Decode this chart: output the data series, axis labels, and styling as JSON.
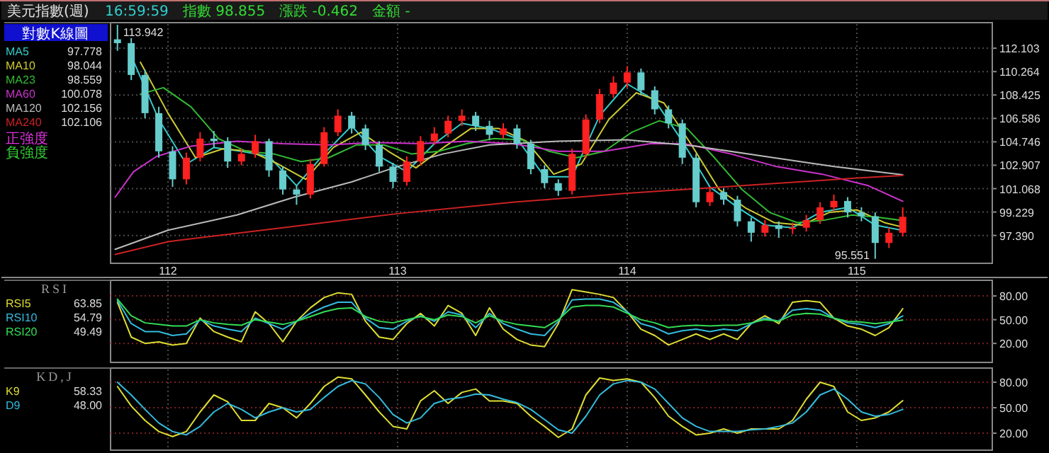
{
  "chart_data": [
    {
      "type": "candlestick",
      "title": "美元指數(週)",
      "legend_title": "對數K線圖",
      "x": [
        111.78,
        111.84,
        111.9,
        111.96,
        112.02,
        112.08,
        112.14,
        112.2,
        112.26,
        112.32,
        112.38,
        112.44,
        112.5,
        112.56,
        112.62,
        112.68,
        112.74,
        112.8,
        112.86,
        112.92,
        112.98,
        113.04,
        113.1,
        113.16,
        113.22,
        113.28,
        113.34,
        113.4,
        113.46,
        113.52,
        113.58,
        113.64,
        113.7,
        113.76,
        113.82,
        113.88,
        113.94,
        114.0,
        114.06,
        114.12,
        114.18,
        114.24,
        114.3,
        114.36,
        114.42,
        114.48,
        114.54,
        114.6,
        114.66,
        114.72,
        114.78,
        114.84,
        114.9,
        114.96,
        115.02,
        115.08,
        115.14,
        115.2
      ],
      "ohlc": [
        [
          112.8,
          113.942,
          111.9,
          112.5
        ],
        [
          112.5,
          112.9,
          109.6,
          110.0
        ],
        [
          110.0,
          110.4,
          106.6,
          107.0
        ],
        [
          107.0,
          107.5,
          103.5,
          104.0
        ],
        [
          104.0,
          104.4,
          101.2,
          101.8
        ],
        [
          101.8,
          103.9,
          101.4,
          103.5
        ],
        [
          103.5,
          105.5,
          103.2,
          105.0
        ],
        [
          105.0,
          105.6,
          104.3,
          104.8
        ],
        [
          104.8,
          105.1,
          102.7,
          103.2
        ],
        [
          103.2,
          104.2,
          102.9,
          103.8
        ],
        [
          103.8,
          105.3,
          103.5,
          104.8
        ],
        [
          104.8,
          105.0,
          102.0,
          102.5
        ],
        [
          102.5,
          102.8,
          100.6,
          101.0
        ],
        [
          101.0,
          101.3,
          99.8,
          100.6
        ],
        [
          100.6,
          103.4,
          100.3,
          103.0
        ],
        [
          103.0,
          105.9,
          102.8,
          105.5
        ],
        [
          105.5,
          107.3,
          105.2,
          106.8
        ],
        [
          106.8,
          107.1,
          105.4,
          105.8
        ],
        [
          105.8,
          106.1,
          104.1,
          104.5
        ],
        [
          104.5,
          104.8,
          102.4,
          102.8
        ],
        [
          102.8,
          103.1,
          101.1,
          101.6
        ],
        [
          101.6,
          103.6,
          101.3,
          103.2
        ],
        [
          103.2,
          105.2,
          102.9,
          104.8
        ],
        [
          104.8,
          105.9,
          104.5,
          105.4
        ],
        [
          105.4,
          106.8,
          105.1,
          106.4
        ],
        [
          106.4,
          107.3,
          106.0,
          106.8
        ],
        [
          106.8,
          107.1,
          105.6,
          106.0
        ],
        [
          106.0,
          106.4,
          104.9,
          105.3
        ],
        [
          105.3,
          106.2,
          105.0,
          105.8
        ],
        [
          105.8,
          106.1,
          104.2,
          104.6
        ],
        [
          104.6,
          104.9,
          102.2,
          102.6
        ],
        [
          102.6,
          102.9,
          101.1,
          101.5
        ],
        [
          101.5,
          101.8,
          100.5,
          100.9
        ],
        [
          100.9,
          104.2,
          100.6,
          103.8
        ],
        [
          103.8,
          106.9,
          103.5,
          106.5
        ],
        [
          106.5,
          108.9,
          106.2,
          108.5
        ],
        [
          108.5,
          109.9,
          108.2,
          109.4
        ],
        [
          109.4,
          110.7,
          109.0,
          110.2
        ],
        [
          110.2,
          110.5,
          108.4,
          108.8
        ],
        [
          108.8,
          109.1,
          106.9,
          107.3
        ],
        [
          107.3,
          107.6,
          105.8,
          106.2
        ],
        [
          106.2,
          106.5,
          103.0,
          103.5
        ],
        [
          103.5,
          103.8,
          99.6,
          100.0
        ],
        [
          100.0,
          101.2,
          99.7,
          100.8
        ],
        [
          100.8,
          101.1,
          99.8,
          100.2
        ],
        [
          100.2,
          100.5,
          98.1,
          98.5
        ],
        [
          98.5,
          98.8,
          96.9,
          97.6
        ],
        [
          97.6,
          98.6,
          97.3,
          98.2
        ],
        [
          98.2,
          98.5,
          97.2,
          97.9
        ],
        [
          97.9,
          98.4,
          97.5,
          98.0
        ],
        [
          98.0,
          99.0,
          97.7,
          98.6
        ],
        [
          98.6,
          100.0,
          98.3,
          99.6
        ],
        [
          99.6,
          100.6,
          99.3,
          100.1
        ],
        [
          100.1,
          100.4,
          98.8,
          99.2
        ],
        [
          99.2,
          99.6,
          98.5,
          98.9
        ],
        [
          98.9,
          99.2,
          95.551,
          96.8
        ],
        [
          96.8,
          98.0,
          96.4,
          97.6
        ],
        [
          97.6,
          99.6,
          97.3,
          98.855
        ]
      ],
      "colors": [
        "#66cccc",
        "#66cccc",
        "#66cccc",
        "#66cccc",
        "#66cccc",
        "#ff2020",
        "#ff2020",
        "#66cccc",
        "#66cccc",
        "#ff2020",
        "#ff2020",
        "#66cccc",
        "#66cccc",
        "#66cccc",
        "#ff2020",
        "#ff2020",
        "#ff2020",
        "#66cccc",
        "#66cccc",
        "#66cccc",
        "#66cccc",
        "#ff2020",
        "#ff2020",
        "#ff2020",
        "#ff2020",
        "#ff2020",
        "#66cccc",
        "#66cccc",
        "#ff2020",
        "#66cccc",
        "#66cccc",
        "#66cccc",
        "#66cccc",
        "#ff2020",
        "#ff2020",
        "#ff2020",
        "#ff2020",
        "#ff2020",
        "#66cccc",
        "#66cccc",
        "#66cccc",
        "#66cccc",
        "#66cccc",
        "#ff2020",
        "#66cccc",
        "#66cccc",
        "#66cccc",
        "#ff2020",
        "#66cccc",
        "#ff2020",
        "#ff2020",
        "#ff2020",
        "#ff2020",
        "#66cccc",
        "#66cccc",
        "#66cccc",
        "#ff2020",
        "#ff2020"
      ],
      "series": [
        {
          "name": "MA5",
          "type": "line",
          "color": "#33cccc",
          "x": [
            111.84,
            111.96,
            112.08,
            112.2,
            112.32,
            112.44,
            112.56,
            112.68,
            112.8,
            112.92,
            113.04,
            113.16,
            113.28,
            113.4,
            113.52,
            113.64,
            113.76,
            113.88,
            114.0,
            114.12,
            114.24,
            114.36,
            114.48,
            114.6,
            114.72,
            114.84,
            114.96,
            115.08,
            115.2
          ],
          "values": [
            111.5,
            106.5,
            103.0,
            104.3,
            104.0,
            103.6,
            101.3,
            103.8,
            106.0,
            103.6,
            102.4,
            104.6,
            106.2,
            105.8,
            105.0,
            102.0,
            102.0,
            106.8,
            109.3,
            108.0,
            104.8,
            101.2,
            99.6,
            98.2,
            98.0,
            99.2,
            99.6,
            98.2,
            97.778
          ]
        },
        {
          "name": "MA10",
          "type": "line",
          "color": "#cccc33",
          "x": [
            111.88,
            112.0,
            112.12,
            112.24,
            112.36,
            112.48,
            112.6,
            112.72,
            112.84,
            112.96,
            113.08,
            113.2,
            113.32,
            113.44,
            113.56,
            113.68,
            113.8,
            113.92,
            114.04,
            114.16,
            114.28,
            114.4,
            114.52,
            114.64,
            114.76,
            114.88,
            115.0,
            115.12,
            115.2
          ],
          "values": [
            111.0,
            107.0,
            103.5,
            104.2,
            104.0,
            103.0,
            101.8,
            104.3,
            105.5,
            104.0,
            102.7,
            104.3,
            105.8,
            105.8,
            104.8,
            102.2,
            103.0,
            106.5,
            108.6,
            107.8,
            104.5,
            101.0,
            99.5,
            98.4,
            98.2,
            99.2,
            99.4,
            98.4,
            98.044
          ]
        },
        {
          "name": "MA23",
          "type": "line",
          "color": "#33bb33",
          "x": [
            111.88,
            111.98,
            112.1,
            112.22,
            112.34,
            112.46,
            112.58,
            112.7,
            112.82,
            112.94,
            113.06,
            113.18,
            113.3,
            113.42,
            113.54,
            113.66,
            113.78,
            113.9,
            114.02,
            114.14,
            114.26,
            114.38,
            114.5,
            114.62,
            114.74,
            114.86,
            114.98,
            115.1,
            115.2
          ],
          "values": [
            108.5,
            109.0,
            107.5,
            105.0,
            104.0,
            103.8,
            103.2,
            103.5,
            104.5,
            104.5,
            103.8,
            104.0,
            104.6,
            105.0,
            104.9,
            104.0,
            103.5,
            104.0,
            105.5,
            106.4,
            105.8,
            103.5,
            101.0,
            99.2,
            98.4,
            98.6,
            99.0,
            98.8,
            98.559
          ]
        },
        {
          "name": "MA60",
          "type": "line",
          "color": "#cc33cc",
          "x": [
            111.77,
            111.85,
            111.95,
            112.1,
            112.3,
            112.5,
            112.7,
            112.9,
            113.1,
            113.3,
            113.5,
            113.7,
            113.9,
            114.1,
            114.25,
            114.45,
            114.65,
            114.85,
            115.05,
            115.2
          ],
          "values": [
            100.4,
            102.4,
            103.6,
            104.4,
            104.8,
            104.6,
            104.5,
            104.7,
            104.6,
            104.8,
            104.6,
            104.0,
            104.0,
            104.6,
            104.6,
            103.8,
            102.8,
            102.2,
            101.3,
            100.078
          ]
        },
        {
          "name": "MA120",
          "type": "line",
          "color": "#bbbbbb",
          "x": [
            111.77,
            112.0,
            112.3,
            112.55,
            112.8,
            113.0,
            113.2,
            113.4,
            113.7,
            114.0,
            114.3,
            114.6,
            114.9,
            115.2
          ],
          "values": [
            96.3,
            97.8,
            99.0,
            100.4,
            101.6,
            102.8,
            103.8,
            104.5,
            104.8,
            104.9,
            104.4,
            103.6,
            102.8,
            102.156
          ]
        },
        {
          "name": "MA240",
          "type": "line",
          "color": "#cc2222",
          "x": [
            111.77,
            112.0,
            112.5,
            113.0,
            113.5,
            114.0,
            114.5,
            115.0,
            115.2
          ],
          "values": [
            95.9,
            96.9,
            98.0,
            99.1,
            100.0,
            100.7,
            101.3,
            101.9,
            102.106
          ]
        }
      ],
      "xlim": [
        111.75,
        115.59
      ],
      "xticks": [
        112,
        113,
        114,
        115
      ],
      "ylim": [
        95.2,
        114.0
      ],
      "yticks": [
        112.103,
        110.264,
        108.425,
        106.586,
        104.746,
        102.907,
        101.068,
        99.229,
        {
          "value": 97.39,
          "label": "97.390"
        }
      ],
      "grid": true,
      "legend": "left",
      "annotations": [
        "97.778",
        "98.044",
        "98.559",
        "100.078",
        "102.156",
        "102.106",
        "正強度",
        "負強度",
        "16:59:59",
        "指數 98.855",
        "漲跌 -0.462",
        "金額 -",
        {
          "text": "113.942",
          "x": 111.78,
          "y": 113.942
        },
        {
          "text": "95.551",
          "x": 115.08,
          "y": 95.551
        }
      ]
    },
    {
      "type": "line",
      "title": "RSI",
      "x": [
        111.78,
        111.84,
        111.9,
        111.96,
        112.02,
        112.08,
        112.14,
        112.2,
        112.26,
        112.32,
        112.38,
        112.44,
        112.5,
        112.56,
        112.62,
        112.68,
        112.74,
        112.8,
        112.86,
        112.92,
        112.98,
        113.04,
        113.1,
        113.16,
        113.22,
        113.28,
        113.34,
        113.4,
        113.46,
        113.52,
        113.58,
        113.64,
        113.7,
        113.76,
        113.82,
        113.88,
        113.94,
        114.0,
        114.06,
        114.12,
        114.18,
        114.24,
        114.3,
        114.36,
        114.42,
        114.48,
        114.54,
        114.6,
        114.66,
        114.72,
        114.78,
        114.84,
        114.9,
        114.96,
        115.02,
        115.08,
        115.14,
        115.2
      ],
      "series": [
        {
          "name": "RSI5",
          "color": "#dddd33",
          "values": [
            72,
            28,
            20,
            22,
            18,
            20,
            52,
            35,
            28,
            22,
            60,
            45,
            22,
            48,
            65,
            78,
            84,
            82,
            48,
            28,
            25,
            45,
            58,
            42,
            68,
            58,
            30,
            65,
            38,
            25,
            18,
            16,
            45,
            88,
            85,
            82,
            78,
            60,
            38,
            30,
            18,
            25,
            32,
            25,
            32,
            25,
            45,
            55,
            45,
            72,
            74,
            72,
            52,
            42,
            38,
            30,
            40,
            63.85
          ]
        },
        {
          "name": "RSI10",
          "color": "#33bbdd",
          "values": [
            74,
            45,
            35,
            35,
            30,
            32,
            50,
            42,
            38,
            35,
            52,
            45,
            38,
            48,
            58,
            66,
            72,
            72,
            52,
            40,
            38,
            48,
            55,
            48,
            60,
            56,
            40,
            58,
            45,
            38,
            32,
            30,
            48,
            75,
            76,
            76,
            72,
            60,
            45,
            40,
            32,
            36,
            38,
            35,
            38,
            36,
            45,
            52,
            48,
            62,
            64,
            62,
            52,
            46,
            44,
            40,
            45,
            54.79
          ]
        },
        {
          "name": "RSI20",
          "color": "#33dd55",
          "values": [
            76,
            55,
            46,
            44,
            42,
            42,
            50,
            46,
            44,
            43,
            50,
            47,
            44,
            48,
            54,
            60,
            64,
            65,
            54,
            48,
            46,
            50,
            54,
            50,
            56,
            54,
            46,
            55,
            48,
            44,
            42,
            40,
            50,
            66,
            68,
            68,
            66,
            58,
            50,
            46,
            40,
            42,
            43,
            42,
            43,
            43,
            46,
            50,
            48,
            56,
            58,
            57,
            52,
            48,
            47,
            45,
            47,
            49.49
          ]
        }
      ],
      "xlim": [
        111.75,
        115.59
      ],
      "xticks": [
        112,
        113,
        114,
        115
      ],
      "ylim": [
        -4,
        98
      ],
      "yticks": [
        {
          "value": 80,
          "label": "80.00"
        },
        {
          "value": 50,
          "label": "50.00"
        },
        {
          "value": 20,
          "label": "20.00"
        }
      ],
      "tick_labels": "y",
      "grid": true,
      "legend": "left",
      "annotations": [
        "63.85",
        "54.79",
        "49.49"
      ]
    },
    {
      "type": "line",
      "title": "KD,J",
      "x": [
        111.78,
        111.84,
        111.9,
        111.96,
        112.02,
        112.08,
        112.14,
        112.2,
        112.26,
        112.32,
        112.38,
        112.44,
        112.5,
        112.56,
        112.62,
        112.68,
        112.74,
        112.8,
        112.86,
        112.92,
        112.98,
        113.04,
        113.1,
        113.16,
        113.22,
        113.28,
        113.34,
        113.4,
        113.46,
        113.52,
        113.58,
        113.64,
        113.7,
        113.76,
        113.82,
        113.88,
        113.94,
        114.0,
        114.06,
        114.12,
        114.18,
        114.24,
        114.3,
        114.36,
        114.42,
        114.48,
        114.54,
        114.6,
        114.66,
        114.72,
        114.78,
        114.84,
        114.9,
        114.96,
        115.02,
        115.08,
        115.14,
        115.2
      ],
      "series": [
        {
          "name": "K9",
          "color": "#dddd33",
          "values": [
            75,
            52,
            35,
            22,
            16,
            22,
            45,
            65,
            57,
            35,
            35,
            55,
            50,
            38,
            55,
            75,
            86,
            84,
            65,
            45,
            28,
            25,
            58,
            70,
            55,
            68,
            72,
            58,
            58,
            55,
            40,
            28,
            15,
            25,
            65,
            85,
            82,
            84,
            80,
            62,
            40,
            28,
            18,
            20,
            25,
            20,
            25,
            25,
            25,
            35,
            60,
            80,
            75,
            45,
            35,
            38,
            45,
            58.33
          ]
        },
        {
          "name": "D9",
          "color": "#33bbdd",
          "values": [
            80,
            65,
            48,
            32,
            22,
            18,
            28,
            45,
            55,
            48,
            38,
            45,
            50,
            45,
            48,
            62,
            75,
            82,
            78,
            62,
            42,
            32,
            38,
            55,
            60,
            62,
            66,
            65,
            60,
            56,
            48,
            36,
            24,
            20,
            40,
            65,
            78,
            82,
            80,
            72,
            55,
            38,
            28,
            22,
            22,
            22,
            24,
            25,
            28,
            32,
            45,
            65,
            72,
            60,
            45,
            40,
            42,
            48.0
          ]
        }
      ],
      "xlim": [
        111.75,
        115.59
      ],
      "xticks": [
        112,
        113,
        114,
        115
      ],
      "ylim": [
        0,
        95
      ],
      "yticks": [
        {
          "value": 80,
          "label": "80.00"
        },
        {
          "value": 50,
          "label": "50.00"
        },
        {
          "value": 20,
          "label": "20.00"
        }
      ],
      "tick_labels": "y",
      "grid": true,
      "legend": "left",
      "annotations": [
        "58.33",
        "48.00"
      ]
    }
  ]
}
